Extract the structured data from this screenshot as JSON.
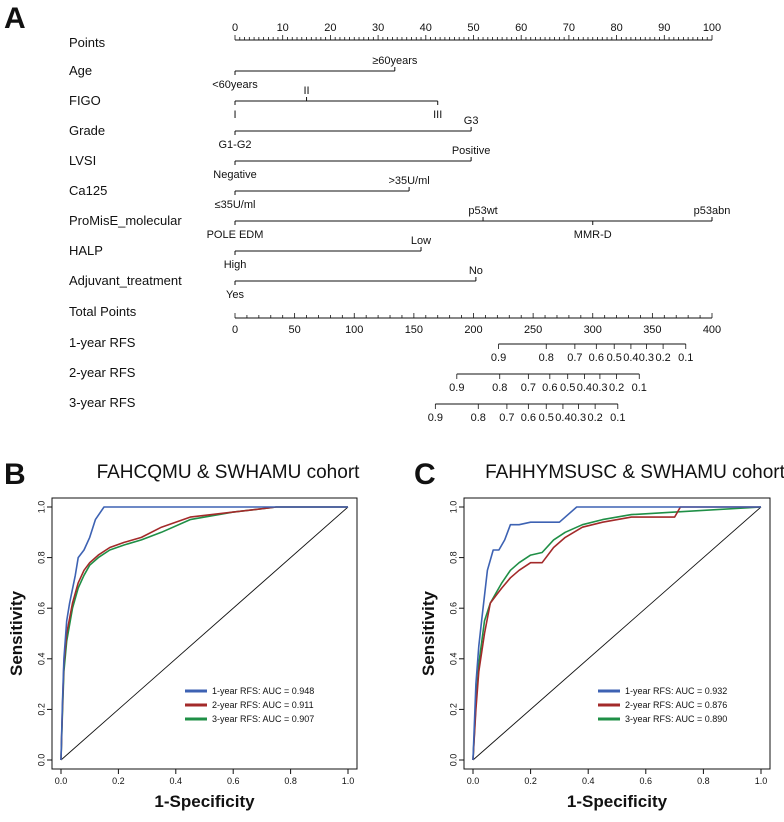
{
  "panels": {
    "A": "A",
    "B": "B",
    "C": "C"
  },
  "nomogram": {
    "points_label": "Points",
    "points_ticks": [
      "0",
      "10",
      "20",
      "30",
      "40",
      "50",
      "60",
      "70",
      "80",
      "90",
      "100"
    ],
    "variables": [
      {
        "name": "Age",
        "categories": [
          {
            "label": "<60years",
            "points": 0,
            "pos": "below"
          },
          {
            "label": "≥60years",
            "points": 33.5,
            "pos": "above"
          }
        ]
      },
      {
        "name": "FIGO",
        "categories": [
          {
            "label": "I",
            "points": 0,
            "pos": "below"
          },
          {
            "label": "II",
            "points": 15,
            "pos": "above"
          },
          {
            "label": "III",
            "points": 42.5,
            "pos": "below"
          }
        ]
      },
      {
        "name": "Grade",
        "categories": [
          {
            "label": "G1-G2",
            "points": 0,
            "pos": "below"
          },
          {
            "label": "G3",
            "points": 49.5,
            "pos": "above"
          }
        ]
      },
      {
        "name": "LVSI",
        "categories": [
          {
            "label": "Negative",
            "points": 0,
            "pos": "below"
          },
          {
            "label": "Positive",
            "points": 49.5,
            "pos": "above"
          }
        ]
      },
      {
        "name": "Ca125",
        "categories": [
          {
            "label": "≤35U/ml",
            "points": 0,
            "pos": "below"
          },
          {
            "label": ">35U/ml",
            "points": 36.5,
            "pos": "above"
          }
        ]
      },
      {
        "name": "ProMisE_molecular",
        "categories": [
          {
            "label": "POLE EDM",
            "points": 0,
            "pos": "below"
          },
          {
            "label": "p53wt",
            "points": 52,
            "pos": "above"
          },
          {
            "label": "MMR-D",
            "points": 75,
            "pos": "below"
          },
          {
            "label": "p53abn",
            "points": 100,
            "pos": "above"
          }
        ]
      },
      {
        "name": "HALP",
        "categories": [
          {
            "label": "High",
            "points": 0,
            "pos": "below"
          },
          {
            "label": "Low",
            "points": 39,
            "pos": "above"
          }
        ]
      },
      {
        "name": "Adjuvant_treatment",
        "categories": [
          {
            "label": "Yes",
            "points": 0,
            "pos": "below"
          },
          {
            "label": "No",
            "points": 50.5,
            "pos": "above"
          }
        ]
      }
    ],
    "total_points_label": "Total Points",
    "total_points_ticks": [
      "0",
      "50",
      "100",
      "150",
      "200",
      "250",
      "300",
      "350",
      "400"
    ],
    "rfs_scales": [
      {
        "name": "1-year RFS",
        "ticks": [
          {
            "label": "0.9",
            "total": 221
          },
          {
            "label": "0.8",
            "total": 261
          },
          {
            "label": "0.7",
            "total": 285
          },
          {
            "label": "0.6",
            "total": 303
          },
          {
            "label": "0.5",
            "total": 318
          },
          {
            "label": "0.4",
            "total": 332
          },
          {
            "label": "0.3",
            "total": 345
          },
          {
            "label": "0.2",
            "total": 359
          },
          {
            "label": "0.1",
            "total": 378
          }
        ]
      },
      {
        "name": "2-year RFS",
        "ticks": [
          {
            "label": "0.9",
            "total": 186
          },
          {
            "label": "0.8",
            "total": 222
          },
          {
            "label": "0.7",
            "total": 246
          },
          {
            "label": "0.6",
            "total": 264
          },
          {
            "label": "0.5",
            "total": 279
          },
          {
            "label": "0.4",
            "total": 293
          },
          {
            "label": "0.3",
            "total": 306
          },
          {
            "label": "0.2",
            "total": 320
          },
          {
            "label": "0.1",
            "total": 339
          }
        ]
      },
      {
        "name": "3-year RFS",
        "ticks": [
          {
            "label": "0.9",
            "total": 168
          },
          {
            "label": "0.8",
            "total": 204
          },
          {
            "label": "0.7",
            "total": 228
          },
          {
            "label": "0.6",
            "total": 246
          },
          {
            "label": "0.5",
            "total": 261
          },
          {
            "label": "0.4",
            "total": 275
          },
          {
            "label": "0.3",
            "total": 288
          },
          {
            "label": "0.2",
            "total": 302
          },
          {
            "label": "0.1",
            "total": 321
          }
        ]
      }
    ]
  },
  "colors": {
    "line_1y": "#3d62b3",
    "line_2y": "#a32a2a",
    "line_3y": "#1f8f46",
    "axis": "#111111"
  },
  "chart_data": [
    {
      "type": "line",
      "title": "FAHCQMU & SWHAMU cohort",
      "xlabel": "1-Specificity",
      "ylabel": "Sensitivity",
      "xlim": [
        0,
        1
      ],
      "ylim": [
        0,
        1
      ],
      "ticks": [
        "0.0",
        "0.2",
        "0.4",
        "0.6",
        "0.8",
        "1.0"
      ],
      "legend_position": "bottom-right",
      "series": [
        {
          "name": "1-year RFS: AUC = 0.948",
          "auc": 0.948,
          "color": "#3d62b3",
          "x": [
            0,
            0.005,
            0.01,
            0.02,
            0.03,
            0.05,
            0.06,
            0.08,
            0.1,
            0.12,
            0.15,
            0.2,
            0.3,
            0.6,
            1.0
          ],
          "y": [
            0,
            0.22,
            0.4,
            0.55,
            0.62,
            0.73,
            0.8,
            0.83,
            0.88,
            0.95,
            1.0,
            1.0,
            1.0,
            1.0,
            1.0
          ]
        },
        {
          "name": "2-year RFS: AUC = 0.911",
          "auc": 0.911,
          "color": "#a32a2a",
          "x": [
            0,
            0.005,
            0.01,
            0.02,
            0.04,
            0.06,
            0.08,
            0.1,
            0.13,
            0.17,
            0.22,
            0.28,
            0.35,
            0.45,
            0.6,
            0.75,
            1.0
          ],
          "y": [
            0,
            0.2,
            0.38,
            0.5,
            0.62,
            0.7,
            0.75,
            0.78,
            0.81,
            0.84,
            0.86,
            0.88,
            0.92,
            0.96,
            0.98,
            1.0,
            1.0
          ]
        },
        {
          "name": "3-year RFS: AUC = 0.907",
          "auc": 0.907,
          "color": "#1f8f46",
          "x": [
            0,
            0.005,
            0.01,
            0.02,
            0.04,
            0.06,
            0.08,
            0.1,
            0.13,
            0.17,
            0.22,
            0.28,
            0.35,
            0.45,
            0.6,
            0.75,
            1.0
          ],
          "y": [
            0,
            0.18,
            0.35,
            0.47,
            0.6,
            0.68,
            0.73,
            0.77,
            0.8,
            0.83,
            0.85,
            0.87,
            0.9,
            0.95,
            0.98,
            1.0,
            1.0
          ]
        }
      ]
    },
    {
      "type": "line",
      "title": "FAHHYMSUSC & SWHAMU cohort",
      "xlabel": "1-Specificity",
      "ylabel": "Sensitivity",
      "xlim": [
        0,
        1
      ],
      "ylim": [
        0,
        1
      ],
      "ticks": [
        "0.0",
        "0.2",
        "0.4",
        "0.6",
        "0.8",
        "1.0"
      ],
      "legend_position": "bottom-right",
      "series": [
        {
          "name": "1-year RFS: AUC = 0.932",
          "auc": 0.932,
          "color": "#3d62b3",
          "x": [
            0,
            0.01,
            0.02,
            0.03,
            0.05,
            0.07,
            0.09,
            0.11,
            0.13,
            0.16,
            0.2,
            0.25,
            0.3,
            0.36,
            0.45,
            0.72,
            1.0
          ],
          "y": [
            0,
            0.3,
            0.45,
            0.55,
            0.75,
            0.83,
            0.83,
            0.87,
            0.93,
            0.93,
            0.94,
            0.94,
            0.94,
            1.0,
            1.0,
            1.0,
            1.0
          ]
        },
        {
          "name": "2-year RFS: AUC = 0.876",
          "auc": 0.876,
          "color": "#a32a2a",
          "x": [
            0,
            0.01,
            0.02,
            0.04,
            0.06,
            0.08,
            0.1,
            0.13,
            0.16,
            0.2,
            0.24,
            0.28,
            0.32,
            0.38,
            0.45,
            0.55,
            0.7,
            0.72,
            1.0
          ],
          "y": [
            0,
            0.2,
            0.35,
            0.5,
            0.62,
            0.65,
            0.68,
            0.72,
            0.75,
            0.78,
            0.78,
            0.84,
            0.88,
            0.92,
            0.94,
            0.96,
            0.96,
            1.0,
            1.0
          ]
        },
        {
          "name": "3-year RFS: AUC = 0.890",
          "auc": 0.89,
          "color": "#1f8f46",
          "x": [
            0,
            0.01,
            0.02,
            0.04,
            0.06,
            0.08,
            0.1,
            0.13,
            0.16,
            0.2,
            0.24,
            0.28,
            0.32,
            0.38,
            0.45,
            0.55,
            0.7,
            1.0
          ],
          "y": [
            0,
            0.22,
            0.38,
            0.55,
            0.62,
            0.66,
            0.7,
            0.75,
            0.78,
            0.81,
            0.82,
            0.87,
            0.9,
            0.93,
            0.95,
            0.97,
            0.98,
            1.0
          ]
        }
      ]
    }
  ]
}
